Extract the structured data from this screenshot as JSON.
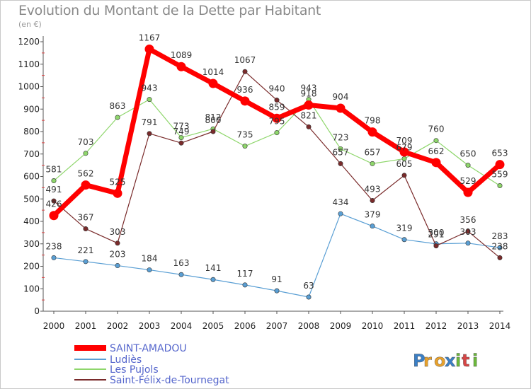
{
  "chart_data": {
    "type": "line",
    "title": "Evolution du Montant de la Dette par Habitant",
    "unit_label": "(en €)",
    "x": [
      "2000",
      "2001",
      "2002",
      "2003",
      "2004",
      "2005",
      "2006",
      "2007",
      "2008",
      "2009",
      "2010",
      "2011",
      "2012",
      "2013",
      "2014"
    ],
    "ylim": [
      0,
      1200
    ],
    "yticks": [
      0,
      100,
      200,
      300,
      400,
      500,
      600,
      700,
      800,
      900,
      1000,
      1100,
      1200
    ],
    "grid": false,
    "legend_position": "bottom-left",
    "series": [
      {
        "name": "SAINT-AMADOU",
        "color": "#ff0000",
        "values": [
          426,
          562,
          525,
          1167,
          1089,
          1014,
          936,
          859,
          918,
          904,
          798,
          709,
          662,
          529,
          653
        ]
      },
      {
        "name": "Ludiès",
        "color": "#5a9fd4",
        "values": [
          238,
          221,
          203,
          184,
          163,
          141,
          117,
          91,
          63,
          434,
          379,
          319,
          300,
          303,
          283
        ]
      },
      {
        "name": "Les Pujols",
        "color": "#8ed66b",
        "values": [
          581,
          703,
          863,
          943,
          773,
          812,
          735,
          795,
          943,
          723,
          657,
          679,
          760,
          650,
          559
        ]
      },
      {
        "name": "Saint-Félix-de-Tournegat",
        "color": "#7a2b2b",
        "values": [
          491,
          367,
          303,
          791,
          749,
          800,
          1067,
          940,
          821,
          657,
          493,
          605,
          291,
          356,
          238
        ]
      }
    ]
  },
  "watermark": {
    "text": "Proxiti"
  }
}
